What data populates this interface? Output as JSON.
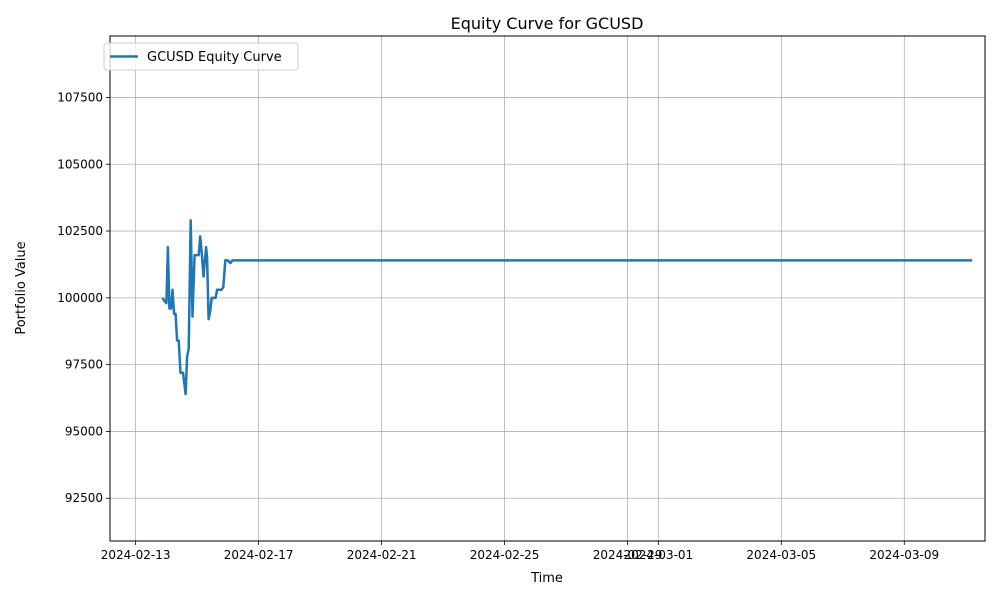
{
  "chart_data": {
    "type": "line",
    "title": "Equity Curve for GCUSD",
    "xlabel": "Time",
    "ylabel": "Portfolio Value",
    "xlim": [
      "2024-02-12T04:00",
      "2024-03-11T15:00"
    ],
    "ylim": [
      90900,
      109800
    ],
    "xticks": [
      "2024-02-13",
      "2024-02-17",
      "2024-02-21",
      "2024-02-25",
      "2024-02-29",
      "2024-03-01",
      "2024-03-05",
      "2024-03-09"
    ],
    "yticks": [
      92500,
      95000,
      97500,
      100000,
      102500,
      105000,
      107500
    ],
    "ytick_labels": [
      "92500",
      "95000",
      "97500",
      "100000",
      "102500",
      "105000",
      "107500"
    ],
    "grid": true,
    "legend_position": "upper-left",
    "color": "#1f77b4",
    "series": [
      {
        "name": "GCUSD Equity Curve",
        "x": [
          "2024-02-13T21:00",
          "2024-02-13T22:12",
          "2024-02-14T00:00",
          "2024-02-14T01:12",
          "2024-02-14T02:24",
          "2024-02-14T03:36",
          "2024-02-14T04:48",
          "2024-02-14T06:00",
          "2024-02-14T07:12",
          "2024-02-14T08:24",
          "2024-02-14T09:36",
          "2024-02-14T11:00",
          "2024-02-14T13:00",
          "2024-02-14T15:00",
          "2024-02-14T16:12",
          "2024-02-14T17:24",
          "2024-02-14T19:00",
          "2024-02-14T20:24",
          "2024-02-14T22:00",
          "2024-02-15T00:00",
          "2024-02-15T01:12",
          "2024-02-15T02:24",
          "2024-02-15T03:36",
          "2024-02-15T05:00",
          "2024-02-15T06:12",
          "2024-02-15T07:00",
          "2024-02-15T07:48",
          "2024-02-15T09:00",
          "2024-02-15T10:12",
          "2024-02-15T11:24",
          "2024-02-15T14:24",
          "2024-02-15T15:36",
          "2024-02-15T17:00",
          "2024-02-15T18:12",
          "2024-02-15T19:00",
          "2024-02-15T20:24",
          "2024-02-15T22:00",
          "2024-02-16T00:00",
          "2024-02-16T02:00",
          "2024-02-16T03:36",
          "2024-02-16T05:00",
          "2024-02-16T08:00",
          "2024-02-16T10:00",
          "2024-02-16T14:00",
          "2024-02-16T17:00",
          "2024-02-18T18:00",
          "2024-02-18T20:00",
          "2024-02-19T02:00",
          "2024-02-19T04:00",
          "2024-02-19T12:00",
          "2024-02-19T15:00",
          "2024-02-19T17:00",
          "2024-02-19T19:00",
          "2024-02-19T21:00",
          "2024-02-20T06:00",
          "2024-02-20T08:00",
          "2024-02-20T10:00",
          "2024-02-20T14:00",
          "2024-02-20T17:00",
          "2024-02-20T20:00",
          "2024-02-20T23:00",
          "2024-02-21T02:00",
          "2024-02-21T05:00",
          "2024-02-21T07:00",
          "2024-02-21T09:00",
          "2024-02-21T11:00",
          "2024-02-21T13:00",
          "2024-02-21T16:00",
          "2024-02-21T18:00",
          "2024-02-21T20:00",
          "2024-02-21T22:00",
          "2024-02-22T03:00",
          "2024-02-22T05:00",
          "2024-02-22T12:00",
          "2024-02-22T16:00",
          "2024-02-22T20:00",
          "2024-02-23T00:00",
          "2024-02-26T00:00",
          "2024-02-26T09:00",
          "2024-02-26T11:00",
          "2024-02-26T14:00",
          "2024-02-26T17:00",
          "2024-02-26T19:00",
          "2024-02-26T21:00",
          "2024-02-26T23:00",
          "2024-02-27T00:00",
          "2024-02-27T02:00",
          "2024-02-27T04:00",
          "2024-02-27T09:00",
          "2024-02-27T11:00",
          "2024-02-27T13:00",
          "2024-02-27T15:00",
          "2024-02-27T17:00",
          "2024-02-27T19:00",
          "2024-02-27T21:00",
          "2024-02-28T00:00",
          "2024-02-28T02:00",
          "2024-02-28T04:00",
          "2024-02-28T06:00",
          "2024-02-28T09:00",
          "2024-02-28T12:00",
          "2024-02-28T15:00",
          "2024-02-28T18:00",
          "2024-02-28T21:00",
          "2024-02-29T00:00",
          "2024-02-29T02:00",
          "2024-02-29T04:00",
          "2024-02-29T07:00",
          "2024-02-29T12:00",
          "2024-02-29T16:00",
          "2024-02-29T19:00",
          "2024-02-29T23:00",
          "2024-03-01T02:00",
          "2024-03-01T05:00",
          "2024-03-01T08:00",
          "2024-03-01T11:00",
          "2024-03-01T14:00",
          "2024-03-04T00:00",
          "2024-03-04T04:00",
          "2024-03-04T07:00",
          "2024-03-04T10:00",
          "2024-03-04T14:00",
          "2024-03-04T18:00",
          "2024-03-04T22:00",
          "2024-03-05T02:00",
          "2024-03-05T05:00",
          "2024-03-05T08:00",
          "2024-03-05T11:00",
          "2024-03-05T14:00",
          "2024-03-05T17:00",
          "2024-03-05T20:00",
          "2024-03-05T23:00",
          "2024-03-06T02:00",
          "2024-03-06T05:00",
          "2024-03-06T08:00",
          "2024-03-06T11:00",
          "2024-03-06T14:00",
          "2024-03-06T17:00",
          "2024-03-06T21:00",
          "2024-03-07T02:00",
          "2024-03-07T05:00",
          "2024-03-07T08:00",
          "2024-03-07T11:00",
          "2024-03-07T14:00",
          "2024-03-07T17:00",
          "2024-03-07T20:00",
          "2024-03-07T23:00",
          "2024-03-08T02:00",
          "2024-03-08T05:00",
          "2024-03-08T08:00",
          "2024-03-08T11:00",
          "2024-03-08T14:00",
          "2024-03-08T17:00",
          "2024-03-08T20:00",
          "2024-03-10T19:00",
          "2024-03-10T21:00",
          "2024-03-10T23:00",
          "2024-03-11T01:00",
          "2024-03-11T03:00",
          "2024-03-11T05:00"
        ],
        "y": [
          100000,
          99900,
          99800,
          101900,
          99600,
          99600,
          100300,
          99400,
          99400,
          98400,
          98400,
          97200,
          97200,
          96400,
          97800,
          98100,
          102900,
          99300,
          101600,
          101600,
          101600,
          102300,
          101700,
          100800,
          101500,
          101900,
          101500,
          99200,
          99500,
          100000,
          100000,
          100300,
          100300,
          100300,
          100300,
          100400,
          101400,
          101400,
          101300,
          101400,
          101400,
          101400,
          101400,
          101400,
          101400,
          101400,
          101400,
          101400,
          101400,
          101400,
          101400,
          101400,
          101400,
          101400,
          101400,
          101400,
          101400,
          101400,
          101400,
          101400,
          101400,
          101400,
          101400,
          101400,
          101400,
          101400,
          101400,
          101400,
          101400,
          101400,
          101400,
          101400,
          101400,
          101400,
          101400,
          101400,
          101400,
          101400,
          101400,
          101400,
          101400,
          101400,
          101400,
          101400,
          101400,
          101400,
          101400,
          101400,
          101400,
          101400,
          101400,
          101400,
          101400,
          101400,
          101400,
          101400,
          101400,
          101400,
          101400,
          101400,
          101400,
          101400,
          101400,
          101400,
          101400,
          101400,
          101400,
          101400,
          101400,
          101400,
          101400,
          101400,
          101400,
          101400,
          101400,
          101400,
          101400,
          101400,
          101400,
          101400,
          101400,
          101400,
          101400,
          101400,
          101400,
          101400,
          101400,
          101400,
          101400,
          101400,
          101400,
          101400,
          101400,
          101400,
          101400,
          101400,
          101400,
          101400,
          101400,
          101400,
          101400,
          101400,
          101400,
          101400,
          101400,
          101400,
          101400,
          101400,
          101400,
          101400,
          101400,
          101400,
          101400,
          101400,
          101400,
          101400,
          101400,
          101400,
          101400,
          101400
        ]
      }
    ]
  }
}
